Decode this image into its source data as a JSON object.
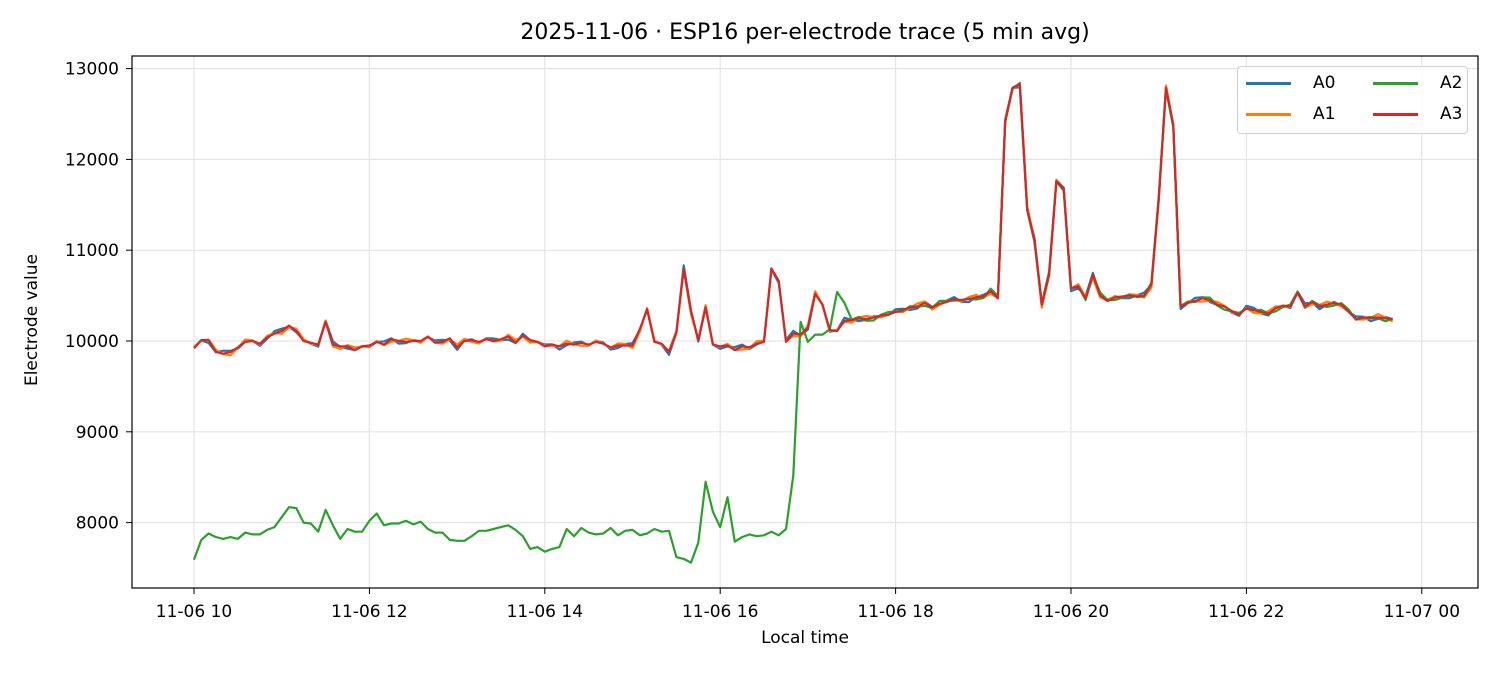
{
  "chart_data": {
    "type": "line",
    "title": "2025-11-06 · ESP16 per-electrode trace (5 min avg)",
    "xlabel": "Local time",
    "ylabel": "Electrode value",
    "x_start": "2025-11-06 10:00",
    "x_interval_minutes": 5,
    "x_ticks": [
      "11-06 10",
      "11-06 12",
      "11-06 14",
      "11-06 16",
      "11-06 18",
      "11-06 20",
      "11-06 22",
      "11-07 00"
    ],
    "y_ticks": [
      8000,
      9000,
      10000,
      11000,
      12000,
      13000
    ],
    "ylim": [
      7300,
      13150
    ],
    "grid": true,
    "legend_position": "upper right",
    "legend_columns": 2,
    "series": [
      {
        "name": "A0",
        "color": "#1f77b4"
      },
      {
        "name": "A1",
        "color": "#ff7f0e"
      },
      {
        "name": "A2",
        "color": "#2ca02c"
      },
      {
        "name": "A3",
        "color": "#d62728"
      }
    ],
    "A3_values": [
      9920,
      10010,
      10010,
      9880,
      9860,
      9880,
      9930,
      9990,
      10000,
      9970,
      10040,
      10080,
      10110,
      10170,
      10110,
      10000,
      9980,
      9960,
      10210,
      9960,
      9940,
      9940,
      9900,
      9940,
      9950,
      9990,
      9960,
      10020,
      10000,
      9990,
      10000,
      10000,
      10050,
      9980,
      9990,
      10030,
      9930,
      10000,
      10010,
      9990,
      10020,
      10000,
      10020,
      10050,
      9980,
      10060,
      10010,
      9990,
      9940,
      9960,
      9940,
      9970,
      9960,
      9980,
      9960,
      9990,
      9970,
      9930,
      9950,
      9950,
      9950,
      10130,
      10350,
      9990,
      9970,
      9880,
      10090,
      10800,
      10330,
      10010,
      10370,
      9960,
      9940,
      9950,
      9900,
      9940,
      9930,
      9970,
      9990,
      10800,
      10660,
      9990,
      10080,
      10070,
      10150,
      10520,
      10400,
      10120,
      10110,
      10220,
      10230,
      10250,
      10240,
      10260,
      10280,
      10290,
      10320,
      10340,
      10370,
      10380,
      10420,
      10370,
      10410,
      10430,
      10460,
      10450,
      10460,
      10480,
      10490,
      10550,
      10470,
      12420,
      12790,
      12830,
      11450,
      11110,
      10400,
      10730,
      11760,
      11680,
      10580,
      10600,
      10470,
      10730,
      10500,
      10440,
      10480,
      10490,
      10500,
      10490,
      10500,
      10620,
      11560,
      12790,
      12380,
      10380,
      10420,
      10440,
      10470,
      10450,
      10400,
      10380,
      10330,
      10290,
      10360,
      10340,
      10320,
      10300,
      10360,
      10390,
      10380,
      10530,
      10380,
      10430,
      10380,
      10400,
      10420,
      10400,
      10320,
      10240,
      10260,
      10250,
      10260,
      10250,
      10240
    ],
    "A0_offsets_note": "A0, A1 track A3 within about ±40",
    "A2_values_until_1700": [
      7590,
      7810,
      7880,
      7840,
      7820,
      7840,
      7820,
      7890,
      7870,
      7870,
      7920,
      7950,
      8060,
      8170,
      8160,
      8000,
      7990,
      7900,
      8140,
      7970,
      7820,
      7930,
      7900,
      7900,
      8020,
      8100,
      7970,
      7990,
      7990,
      8020,
      7980,
      8010,
      7930,
      7890,
      7890,
      7810,
      7800,
      7800,
      7850,
      7910,
      7910,
      7930,
      7950,
      7970,
      7920,
      7850,
      7710,
      7730,
      7680,
      7710,
      7730,
      7930,
      7850,
      7940,
      7890,
      7870,
      7880,
      7940,
      7860,
      7910,
      7920,
      7860,
      7880,
      7930,
      7900,
      7910,
      7620,
      7600,
      7560,
      7780,
      8450,
      8120,
      7950,
      8280,
      7790,
      7840,
      7870,
      7850,
      7860,
      7900,
      7860,
      7930,
      8520,
      10210,
      9990,
      10070,
      10070,
      10130,
      10540,
      10420
    ]
  }
}
